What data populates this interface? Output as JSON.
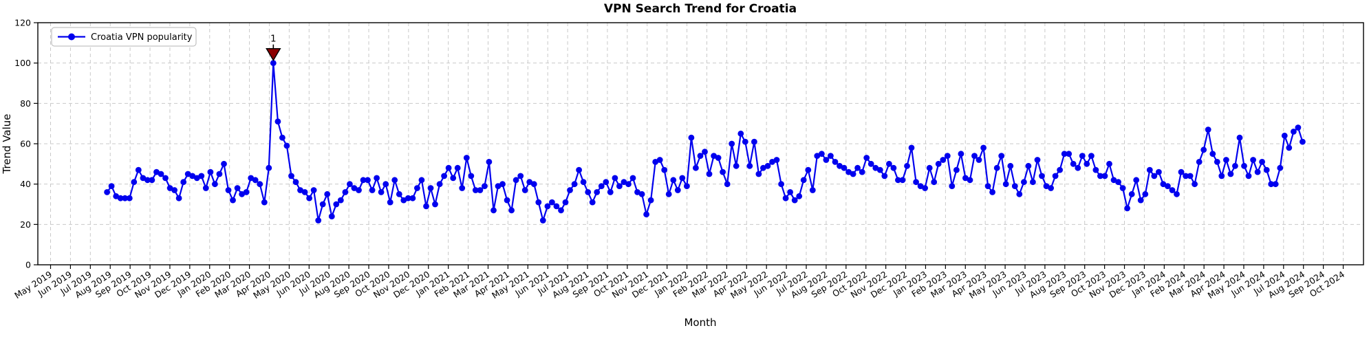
{
  "title": "VPN Search Trend for Croatia",
  "colors": {
    "line": "#0000ee",
    "marker": "#0000ee",
    "grid": "#c9c9c9",
    "axis": "#000000",
    "background": "#ffffff",
    "annotation_text": "#8b1a1a",
    "annotation_marker": "#8b0000",
    "legend_border": "#b3b3b3"
  },
  "chart_data": {
    "type": "line",
    "title": "VPN Search Trend for Croatia",
    "xlabel": "Month",
    "ylabel": "Trend Value",
    "grid": true,
    "legend_position": "upper left",
    "legend_label": "Croatia VPN popularity",
    "ylim": [
      0,
      120
    ],
    "yticks": [
      0,
      20,
      40,
      60,
      80,
      100,
      120
    ],
    "x_tick_labels": [
      "May 2019",
      "Jun 2019",
      "Jul 2019",
      "Aug 2019",
      "Sep 2019",
      "Oct 2019",
      "Nov 2019",
      "Dec 2019",
      "Jan 2020",
      "Feb 2020",
      "Mar 2020",
      "Apr 2020",
      "May 2020",
      "Jun 2020",
      "Jul 2020",
      "Aug 2020",
      "Sep 2020",
      "Oct 2020",
      "Nov 2020",
      "Dec 2020",
      "Jan 2021",
      "Feb 2021",
      "Mar 2021",
      "Apr 2021",
      "May 2021",
      "Jun 2021",
      "Jul 2021",
      "Aug 2021",
      "Sep 2021",
      "Oct 2021",
      "Nov 2021",
      "Dec 2021",
      "Jan 2022",
      "Feb 2022",
      "Mar 2022",
      "Apr 2022",
      "May 2022",
      "Jun 2022",
      "Jul 2022",
      "Aug 2022",
      "Sep 2022",
      "Oct 2022",
      "Nov 2022",
      "Dec 2022",
      "Jan 2023",
      "Feb 2023",
      "Mar 2023",
      "Apr 2023",
      "May 2023",
      "Jun 2023",
      "Jul 2023",
      "Aug 2023",
      "Sep 2023",
      "Oct 2023",
      "Nov 2023",
      "Dec 2023",
      "Jan 2024",
      "Feb 2024",
      "Mar 2024",
      "Apr 2024",
      "May 2024",
      "Jun 2024",
      "Jul 2024",
      "Aug 2024",
      "Sep 2024",
      "Oct 2024"
    ],
    "annotations": [
      {
        "label": "1",
        "point_index": 37,
        "value": 100
      }
    ],
    "series": [
      {
        "name": "Croatia VPN popularity",
        "frequency": "weekly",
        "first_point_month_offset": 2.84,
        "week_step_months": 0.226,
        "values": [
          36,
          39,
          34,
          33,
          33,
          33,
          41,
          47,
          43,
          42,
          42,
          46,
          45,
          43,
          38,
          37,
          33,
          41,
          45,
          44,
          43,
          44,
          38,
          46,
          40,
          45,
          50,
          37,
          32,
          38,
          35,
          36,
          43,
          42,
          40,
          31,
          48,
          100,
          71,
          63,
          59,
          44,
          41,
          37,
          36,
          33,
          37,
          22,
          30,
          35,
          24,
          30,
          32,
          36,
          40,
          38,
          37,
          42,
          42,
          37,
          43,
          36,
          40,
          31,
          42,
          35,
          32,
          33,
          33,
          38,
          42,
          29,
          38,
          30,
          40,
          44,
          48,
          43,
          48,
          38,
          53,
          44,
          37,
          37,
          39,
          51,
          27,
          39,
          40,
          32,
          27,
          42,
          44,
          37,
          41,
          40,
          31,
          22,
          29,
          31,
          29,
          27,
          31,
          37,
          40,
          47,
          41,
          36,
          31,
          36,
          39,
          41,
          36,
          43,
          39,
          41,
          40,
          43,
          36,
          35,
          25,
          32,
          51,
          52,
          47,
          35,
          42,
          37,
          43,
          39,
          63,
          48,
          54,
          56,
          45,
          54,
          53,
          46,
          40,
          60,
          49,
          65,
          61,
          49,
          61,
          45,
          48,
          49,
          51,
          52,
          40,
          33,
          36,
          32,
          34,
          42,
          47,
          37,
          54,
          55,
          52,
          54,
          51,
          49,
          48,
          46,
          45,
          48,
          46,
          53,
          50,
          48,
          47,
          44,
          50,
          48,
          42,
          42,
          49,
          58,
          41,
          39,
          38,
          48,
          41,
          50,
          52,
          54,
          39,
          47,
          55,
          43,
          42,
          54,
          52,
          58,
          39,
          36,
          48,
          54,
          40,
          49,
          39,
          35,
          41,
          49,
          41,
          52,
          44,
          39,
          38,
          44,
          47,
          55,
          55,
          50,
          48,
          54,
          50,
          54,
          47,
          44,
          44,
          50,
          42,
          41,
          38,
          28,
          35,
          42,
          32,
          35,
          47,
          44,
          46,
          40,
          39,
          37,
          35,
          46,
          44,
          44,
          40,
          51,
          57,
          67,
          55,
          51,
          44,
          52,
          45,
          49,
          63,
          49,
          44,
          52,
          46,
          51,
          47,
          40,
          40,
          48,
          64,
          58,
          66,
          68,
          61
        ]
      }
    ]
  }
}
